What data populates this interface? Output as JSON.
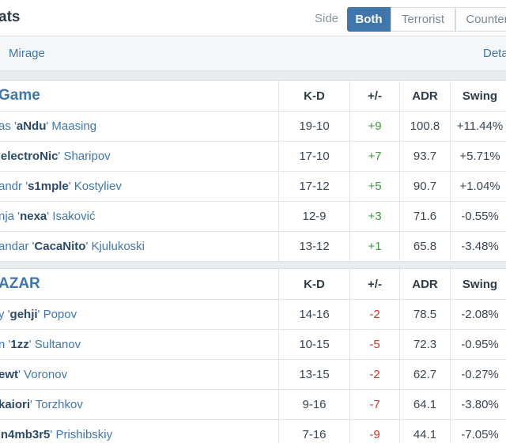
{
  "header": {
    "title": "ats",
    "side_label": "Side",
    "side_options": [
      "Both",
      "Terrorist",
      "Counter"
    ],
    "selected_side": "Both"
  },
  "subbar": {
    "map": "Mirage",
    "details": "Deta"
  },
  "columns": [
    "K-D",
    "+/-",
    "ADR",
    "Swing"
  ],
  "teams": [
    {
      "name": "Game",
      "players": [
        {
          "pre": "as '",
          "nick": "aNdu",
          "post": "' Maasing",
          "kd": "19-10",
          "pm": "+9",
          "adr": "100.8",
          "swing": "+11.44%"
        },
        {
          "pre": "'",
          "nick": "electroNic",
          "post": "' Sharipov",
          "kd": "17-10",
          "pm": "+7",
          "adr": "93.7",
          "swing": "+5.71%"
        },
        {
          "pre": "andr '",
          "nick": "s1mple",
          "post": "' Kostyliev",
          "kd": "17-12",
          "pm": "+5",
          "adr": "90.7",
          "swing": "+1.04%"
        },
        {
          "pre": "nja '",
          "nick": "nexa",
          "post": "' Isaković",
          "kd": "12-9",
          "pm": "+3",
          "adr": "71.6",
          "swing": "-0.55%"
        },
        {
          "pre": "andar '",
          "nick": "CacaNito",
          "post": "' Kjulukoski",
          "kd": "13-12",
          "pm": "+1",
          "adr": "65.8",
          "swing": "-3.48%"
        }
      ]
    },
    {
      "name": "AZAR",
      "players": [
        {
          "pre": "y '",
          "nick": "gehji",
          "post": "' Popov",
          "kd": "14-16",
          "pm": "-2",
          "adr": "78.5",
          "swing": "-2.08%"
        },
        {
          "pre": "n '",
          "nick": "1zz",
          "post": "' Sultanov",
          "kd": "10-15",
          "pm": "-5",
          "adr": "72.3",
          "swing": "-0.95%"
        },
        {
          "pre": "",
          "nick": "ewt",
          "post": "' Voronov",
          "kd": "13-15",
          "pm": "-2",
          "adr": "62.7",
          "swing": "-0.27%"
        },
        {
          "pre": "",
          "nick": "kaiori",
          "post": "' Torzhkov",
          "kd": "9-16",
          "pm": "-7",
          "adr": "64.1",
          "swing": "-3.80%"
        },
        {
          "pre": "'",
          "nick": "n4mb3r5",
          "post": "' Prishibskiy",
          "kd": "7-16",
          "pm": "-9",
          "adr": "44.1",
          "swing": "-7.05%"
        }
      ]
    }
  ]
}
